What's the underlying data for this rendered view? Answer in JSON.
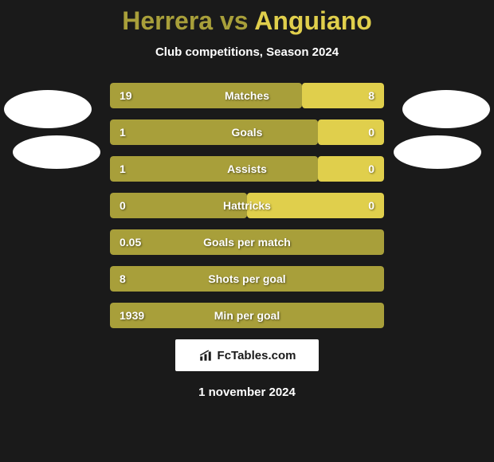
{
  "title": {
    "player1": "Herrera",
    "vs": "vs",
    "player2": "Anguiano"
  },
  "subtitle": "Club competitions, Season 2024",
  "colors": {
    "player1_bar": "#a89f3a",
    "player2_bar": "#e0cf4c",
    "background": "#1a1a1a",
    "text": "#ffffff",
    "avatar": "#ffffff",
    "logo_bg": "#ffffff",
    "logo_text": "#1a1a1a"
  },
  "stats": [
    {
      "label": "Matches",
      "left_value": "19",
      "right_value": "8",
      "left_width_pct": 70,
      "right_width_pct": 30
    },
    {
      "label": "Goals",
      "left_value": "1",
      "right_value": "0",
      "left_width_pct": 76,
      "right_width_pct": 24
    },
    {
      "label": "Assists",
      "left_value": "1",
      "right_value": "0",
      "left_width_pct": 76,
      "right_width_pct": 24
    },
    {
      "label": "Hattricks",
      "left_value": "0",
      "right_value": "0",
      "left_width_pct": 50,
      "right_width_pct": 50
    },
    {
      "label": "Goals per match",
      "left_value": "0.05",
      "right_value": "",
      "left_width_pct": 100,
      "right_width_pct": 0
    },
    {
      "label": "Shots per goal",
      "left_value": "8",
      "right_value": "",
      "left_width_pct": 100,
      "right_width_pct": 0
    },
    {
      "label": "Min per goal",
      "left_value": "1939",
      "right_value": "",
      "left_width_pct": 100,
      "right_width_pct": 0
    }
  ],
  "logo": {
    "text": "FcTables.com"
  },
  "date": "1 november 2024",
  "layout": {
    "stat_bar_height": 32,
    "stat_bar_gap": 14,
    "container_width": 344
  }
}
